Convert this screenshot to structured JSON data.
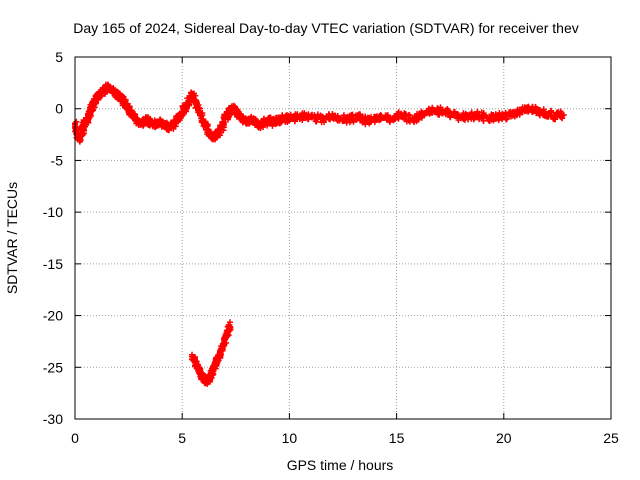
{
  "chart_data": {
    "type": "scatter",
    "title": "Day 165 of 2024, Sidereal Day-to-day VTEC variation (SDTVAR) for receiver thev",
    "xlabel": "GPS time / hours",
    "ylabel": "SDTVAR / TECUs",
    "xlim": [
      0,
      25
    ],
    "ylim": [
      -30,
      5
    ],
    "xticks": [
      0,
      5,
      10,
      15,
      20,
      25
    ],
    "xtick_labels": [
      "0",
      "5",
      "10",
      "15",
      "20",
      "25"
    ],
    "yticks": [
      5,
      0,
      -5,
      -10,
      -15,
      -20,
      -25,
      -30
    ],
    "ytick_labels": [
      "5",
      "0",
      "-5",
      "-10",
      "-15",
      "-20",
      "-25",
      "-30"
    ],
    "grid": true,
    "marker": "plus",
    "series": [
      {
        "name": "main track",
        "color": "#ff0000",
        "points": [
          [
            0.0,
            -1.5
          ],
          [
            0.1,
            -2.4
          ],
          [
            0.2,
            -2.9
          ],
          [
            0.3,
            -2.5
          ],
          [
            0.4,
            -1.8
          ],
          [
            0.5,
            -1.3
          ],
          [
            0.6,
            -0.9
          ],
          [
            0.7,
            -0.5
          ],
          [
            0.8,
            0.2
          ],
          [
            0.9,
            0.6
          ],
          [
            1.0,
            1.0
          ],
          [
            1.2,
            1.5
          ],
          [
            1.4,
            1.9
          ],
          [
            1.6,
            2.0
          ],
          [
            1.8,
            1.7
          ],
          [
            2.0,
            1.3
          ],
          [
            2.2,
            0.9
          ],
          [
            2.4,
            0.3
          ],
          [
            2.6,
            -0.4
          ],
          [
            2.8,
            -0.9
          ],
          [
            3.0,
            -1.4
          ],
          [
            3.2,
            -1.3
          ],
          [
            3.4,
            -1.1
          ],
          [
            3.6,
            -1.4
          ],
          [
            3.8,
            -1.6
          ],
          [
            4.0,
            -1.3
          ],
          [
            4.2,
            -1.5
          ],
          [
            4.4,
            -1.8
          ],
          [
            4.6,
            -1.5
          ],
          [
            4.8,
            -0.9
          ],
          [
            5.0,
            -0.3
          ],
          [
            5.2,
            0.4
          ],
          [
            5.4,
            1.1
          ],
          [
            5.5,
            1.3
          ],
          [
            5.6,
            0.7
          ],
          [
            5.8,
            -0.4
          ],
          [
            6.0,
            -1.3
          ],
          [
            6.2,
            -2.1
          ],
          [
            6.4,
            -2.7
          ],
          [
            6.6,
            -2.5
          ],
          [
            6.8,
            -2.0
          ],
          [
            7.0,
            -1.0
          ],
          [
            7.2,
            -0.3
          ],
          [
            7.4,
            0.1
          ],
          [
            7.6,
            -0.5
          ],
          [
            7.8,
            -1.0
          ],
          [
            8.0,
            -1.3
          ],
          [
            8.2,
            -1.0
          ],
          [
            8.4,
            -1.3
          ],
          [
            8.6,
            -1.6
          ],
          [
            8.8,
            -1.4
          ],
          [
            9.0,
            -1.1
          ],
          [
            9.2,
            -1.3
          ],
          [
            9.4,
            -1.2
          ],
          [
            9.6,
            -1.0
          ],
          [
            9.8,
            -0.9
          ],
          [
            10.0,
            -1.0
          ],
          [
            10.4,
            -0.8
          ],
          [
            10.8,
            -0.7
          ],
          [
            11.2,
            -0.8
          ],
          [
            11.6,
            -1.0
          ],
          [
            12.0,
            -0.8
          ],
          [
            12.4,
            -1.0
          ],
          [
            12.8,
            -1.0
          ],
          [
            13.2,
            -0.8
          ],
          [
            13.6,
            -1.2
          ],
          [
            14.0,
            -0.9
          ],
          [
            14.4,
            -0.9
          ],
          [
            14.8,
            -1.0
          ],
          [
            15.2,
            -0.5
          ],
          [
            15.6,
            -1.0
          ],
          [
            16.0,
            -0.8
          ],
          [
            16.4,
            -0.3
          ],
          [
            16.8,
            -0.2
          ],
          [
            17.2,
            -0.3
          ],
          [
            17.6,
            -0.5
          ],
          [
            18.0,
            -0.8
          ],
          [
            18.4,
            -0.8
          ],
          [
            18.8,
            -0.6
          ],
          [
            19.2,
            -0.9
          ],
          [
            19.6,
            -0.8
          ],
          [
            20.0,
            -0.8
          ],
          [
            20.4,
            -0.5
          ],
          [
            20.8,
            -0.3
          ],
          [
            21.2,
            0.0
          ],
          [
            21.6,
            -0.3
          ],
          [
            22.0,
            -0.5
          ],
          [
            22.4,
            -0.7
          ],
          [
            22.8,
            -0.6
          ]
        ]
      },
      {
        "name": "lower track",
        "color": "#ff0000",
        "points": [
          [
            5.5,
            -24.0
          ],
          [
            5.6,
            -24.5
          ],
          [
            5.7,
            -25.0
          ],
          [
            5.8,
            -25.3
          ],
          [
            5.9,
            -25.8
          ],
          [
            6.0,
            -26.1
          ],
          [
            6.1,
            -26.3
          ],
          [
            6.2,
            -26.2
          ],
          [
            6.3,
            -25.9
          ],
          [
            6.4,
            -25.5
          ],
          [
            6.5,
            -25.0
          ],
          [
            6.6,
            -24.5
          ],
          [
            6.7,
            -24.0
          ],
          [
            6.8,
            -23.4
          ],
          [
            6.9,
            -22.9
          ],
          [
            7.0,
            -22.3
          ],
          [
            7.1,
            -21.6
          ],
          [
            7.2,
            -20.9
          ]
        ]
      }
    ]
  }
}
